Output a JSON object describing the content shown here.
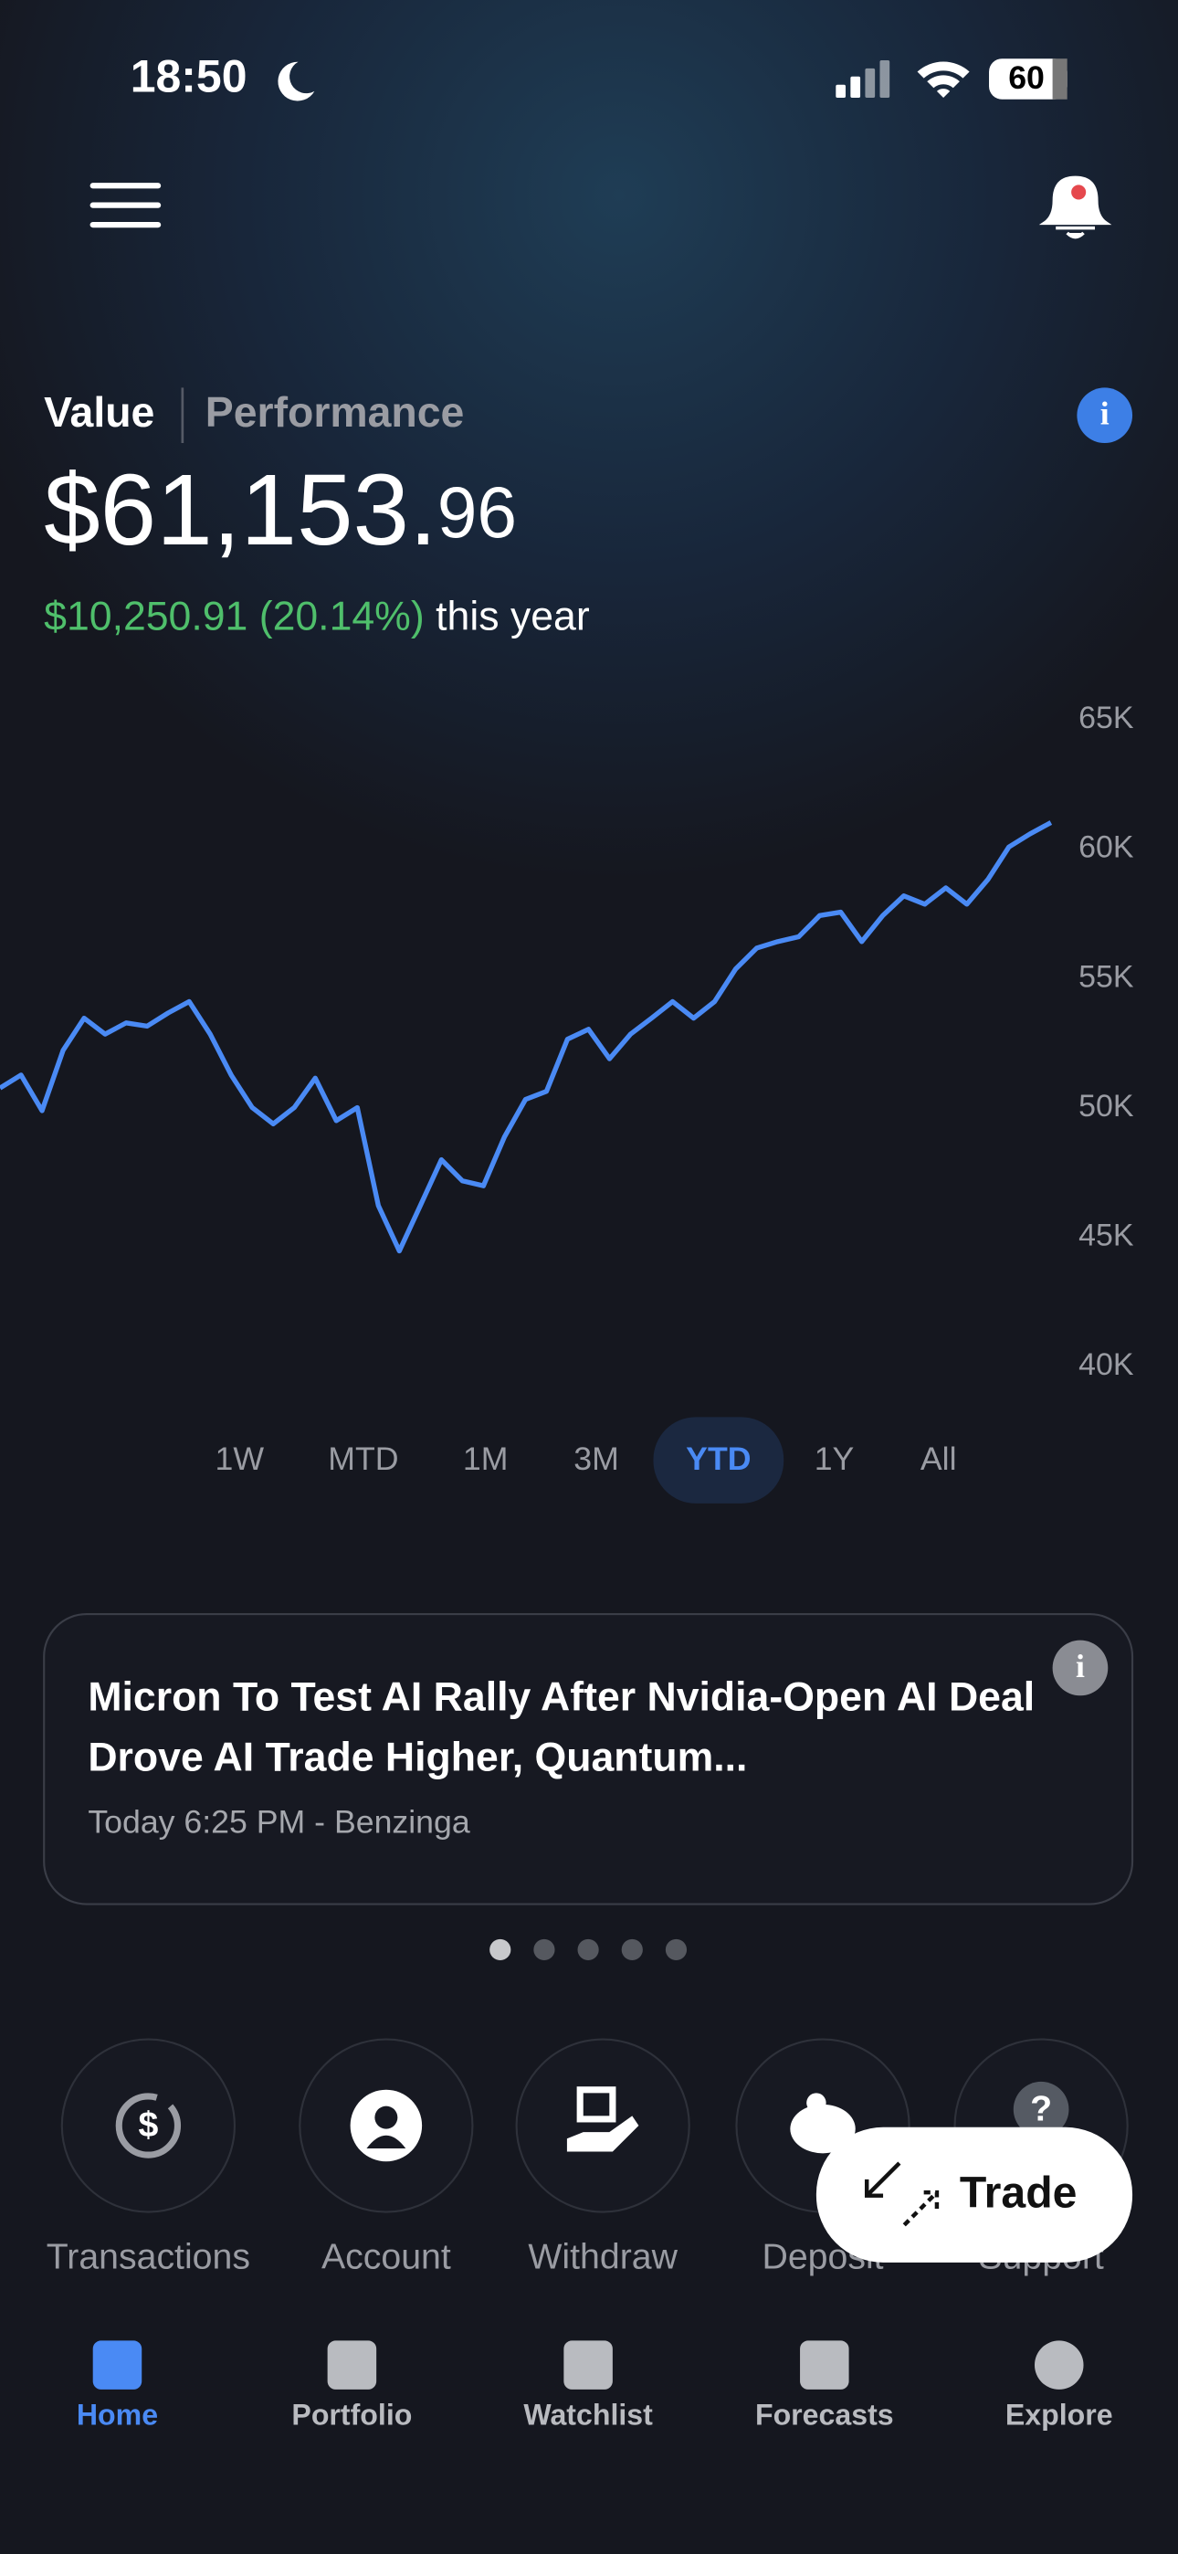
{
  "status_bar": {
    "time": "18:50",
    "battery": "60"
  },
  "tabs": [
    "Value",
    "Performance"
  ],
  "balance": {
    "main": "$61,153.",
    "cents": "96"
  },
  "change": {
    "amount": "$10,250.91 (20.14%)",
    "period": "this year"
  },
  "chart_data": {
    "type": "line",
    "color": "#4a8af4",
    "values": [
      50770,
      51270,
      49890,
      52220,
      53470,
      52850,
      53290,
      53160,
      53670,
      54110,
      52850,
      51270,
      50010,
      49380,
      50010,
      51150,
      49510,
      50010,
      46230,
      44470,
      46230,
      48000,
      47180,
      46990,
      48880,
      50330,
      50640,
      52660,
      53040,
      51900,
      52850,
      53470,
      54110,
      53470,
      54110,
      55370,
      56180,
      56430,
      56620,
      57440,
      57570,
      56430,
      57440,
      58200,
      57880,
      58510,
      57880,
      58830,
      60090,
      60590,
      61030
    ],
    "ylim": [
      40000,
      65000
    ],
    "yticks": [
      {
        "value": 40000,
        "label": "40K"
      },
      {
        "value": 45000,
        "label": "45K"
      },
      {
        "value": 50000,
        "label": "50K"
      },
      {
        "value": 55000,
        "label": "55K"
      },
      {
        "value": 60000,
        "label": "60K"
      },
      {
        "value": 65000,
        "label": "65K"
      }
    ]
  },
  "ranges": {
    "options": [
      "1W",
      "MTD",
      "1M",
      "3M",
      "YTD",
      "1Y",
      "All"
    ],
    "selected_index": 4
  },
  "news": {
    "title": "Micron To Test AI Rally After Nvidia-Open AI Deal Drove AI Trade Higher, Quantum...",
    "meta": "Today 6:25 PM - Benzinga",
    "page_count": 5,
    "current_page": 0
  },
  "actions": [
    "Transactions",
    "Account",
    "Withdraw",
    "Deposit",
    "Support"
  ],
  "trade_button": "Trade",
  "nav": {
    "items": [
      "Home",
      "Portfolio",
      "Watchlist",
      "Forecasts",
      "Explore"
    ],
    "active_index": 0
  }
}
